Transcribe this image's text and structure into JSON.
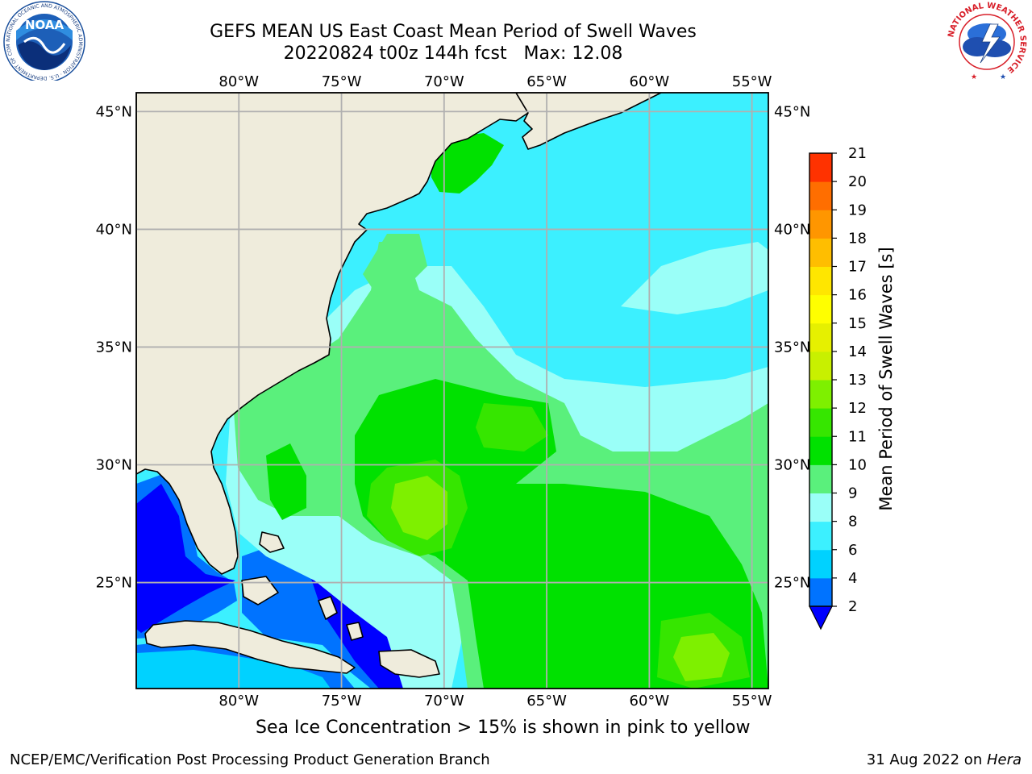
{
  "title": {
    "line1": "GEFS MEAN US East Coast Mean Period of Swell Waves",
    "line2": "20220824 t00z 144h fcst   Max: 12.08"
  },
  "map": {
    "lon_labels": [
      "80°W",
      "75°W",
      "70°W",
      "65°W",
      "60°W",
      "55°W"
    ],
    "lat_labels": [
      "45°N",
      "40°N",
      "35°N",
      "30°N",
      "25°N"
    ],
    "extent": {
      "lon_min": -85,
      "lon_max": -54.2,
      "lat_min": 20.5,
      "lat_max": 45.8
    },
    "colors": {
      "land": "#efecdc",
      "coast": "#000000",
      "grid": "#b0b0b0"
    }
  },
  "colorbar": {
    "label": "Mean Period of Swell Waves [s]",
    "ticks": [
      "2",
      "4",
      "6",
      "8",
      "9",
      "10",
      "11",
      "12",
      "13",
      "14",
      "15",
      "16",
      "17",
      "18",
      "19",
      "20",
      "21"
    ],
    "colors": [
      "#0073ff",
      "#00d2ff",
      "#3cf0ff",
      "#9afff8",
      "#5af07c",
      "#00e100",
      "#36e600",
      "#7ef000",
      "#c8f000",
      "#e6f000",
      "#ffff00",
      "#ffe600",
      "#ffbe00",
      "#ff9600",
      "#ff6e00",
      "#ff3200"
    ],
    "extend_color": "#0000ff"
  },
  "note": "Sea Ice Concentration > 15% is shown in pink to yellow",
  "footer": {
    "left": "NCEP/EMC/Verification Post Processing Product Generation Branch",
    "date": "31 Aug 2022 on ",
    "machine": "Hera"
  },
  "logos": {
    "noaa": "NOAA",
    "noaa_ring": "NATIONAL OCEANIC AND ATMOSPHERIC ADMINISTRATION · U.S. DEPARTMENT OF COMMERCE",
    "nws_ring": "NATIONAL WEATHER SERVICE"
  }
}
